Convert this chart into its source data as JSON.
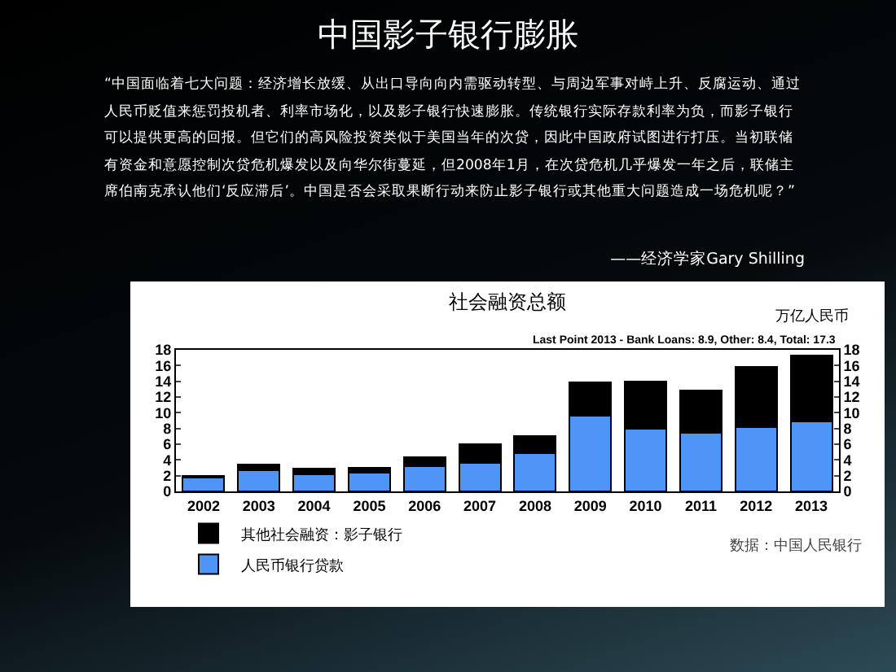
{
  "chart_data": {
    "type": "bar",
    "title": "中国影子银行膨胀",
    "subtitle": "社会融资总额",
    "y2label": "万亿人民币",
    "annotations": [
      "“中国面临着七大问题：经济增长放缓、从出口导向向内需驱动转型、与周边军事对峙上升、反腐运动、通过人民币贬值来惩罚投机者、利率市场化，以及影子银行快速膨胀。传统银行实际存款利率为负，而影子银行可以提供更高的回报。但它们的高风险投资类似于美国当年的次贷，因此中国政府试图进行打压。当初联储有资金和意愿控制次贷危机爆发以及向华尔街蔓延，但2008年1月，在次贷危机几乎爆发一年之后，联储主席伯南克承认他们‘反应滞后’。中国是否会采取果断行动来防止影子银行或其他重大问题造成一场危机呢？”",
      "——经济学家Gary Shilling",
      "Last Point 2013 - Bank Loans: 8.9, Other: 8.4, Total: 17.3",
      "数据：中国人民银行"
    ],
    "categories": [
      "2002",
      "2003",
      "2004",
      "2005",
      "2006",
      "2007",
      "2008",
      "2009",
      "2010",
      "2011",
      "2012",
      "2013"
    ],
    "stacked": true,
    "series": [
      {
        "name": "人民币银行贷款",
        "color": "#4f94f7",
        "values": [
          1.8,
          2.7,
          2.2,
          2.4,
          3.2,
          3.6,
          4.9,
          9.6,
          8.0,
          7.5,
          8.2,
          8.9
        ]
      },
      {
        "name": "其他社会融资：影子银行",
        "color": "#000000",
        "values": [
          0.2,
          0.7,
          0.7,
          0.6,
          1.1,
          2.4,
          2.1,
          4.3,
          6.0,
          5.3,
          7.6,
          8.4
        ]
      }
    ],
    "ylim": [
      0,
      18
    ],
    "yticks": [
      0,
      2,
      4,
      6,
      8,
      10,
      12,
      14,
      16,
      18
    ],
    "y2lim": [
      0,
      18
    ],
    "y2ticks": [
      0,
      2,
      4,
      6,
      8,
      10,
      12,
      14,
      16,
      18
    ],
    "legend": "bottom left"
  }
}
